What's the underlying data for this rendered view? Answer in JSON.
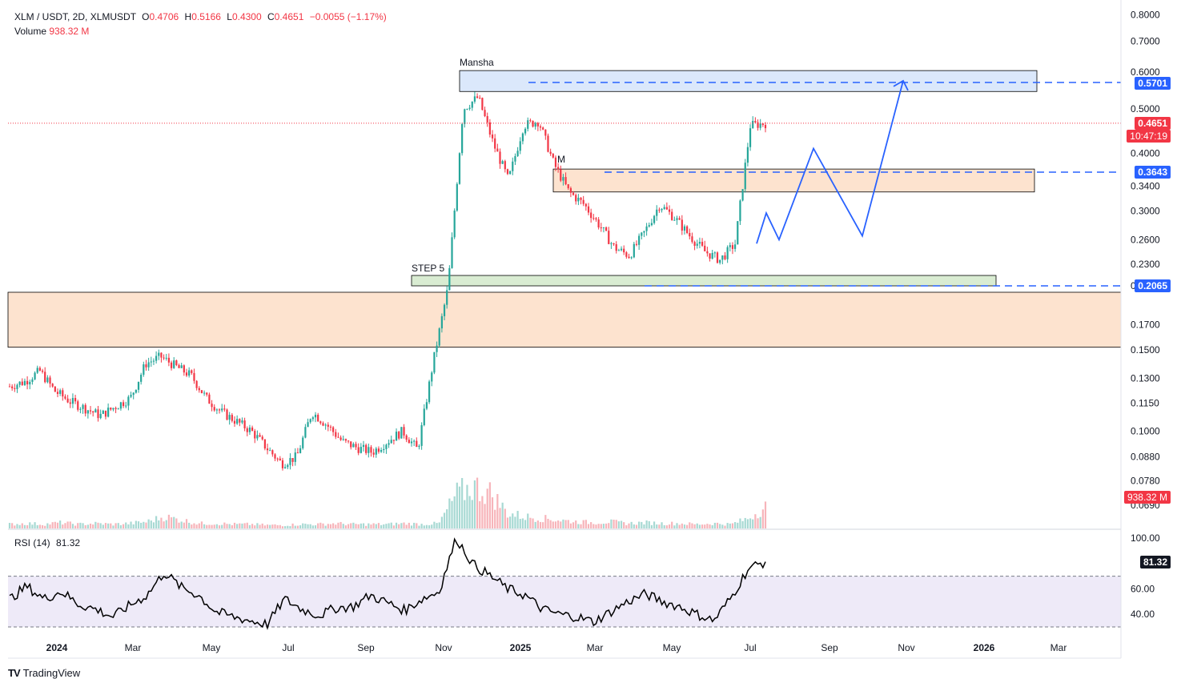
{
  "header": {
    "symbol": "XLM / USDT, 2D, XLMUSDT",
    "o_label": "O",
    "o_value": "0.4706",
    "h_label": "H",
    "h_value": "0.5166",
    "l_label": "L",
    "l_value": "0.4300",
    "c_label": "C",
    "c_value": "0.4651",
    "change": "−0.0055 (−1.17%)",
    "volume_label": "Volume",
    "volume_value": "938.32 M"
  },
  "rsi_header": {
    "label": "RSI (14)",
    "value": "81.32"
  },
  "price_axis": [
    "0.8000",
    "0.7000",
    "0.6000",
    "0.5000",
    "0.4000",
    "0.3400",
    "0.3000",
    "0.2600",
    "0.2300",
    "0.2065",
    "0.1700",
    "0.1500",
    "0.1300",
    "0.1150",
    "0.1000",
    "0.0880",
    "0.0780",
    "0.0690"
  ],
  "rsi_axis": [
    "100.00",
    "60.00",
    "40.00"
  ],
  "time_axis": [
    "2024",
    "Mar",
    "May",
    "Jul",
    "Sep",
    "Nov",
    "2025",
    "Mar",
    "May",
    "Jul",
    "Sep",
    "Nov",
    "2026",
    "Mar"
  ],
  "tags": {
    "resistance": "0.5701",
    "last_price": "0.4651",
    "countdown": "10:47:19",
    "mid": "0.3643",
    "support": "0.2065",
    "volume": "938.32 M",
    "rsi": "81.32"
  },
  "annotations": {
    "top_zone": "Mansha",
    "step": "STEP 5",
    "small": "M"
  },
  "colors": {
    "up": "#26a69a",
    "down": "#f23645",
    "projection": "#2962ff",
    "blue_zone": "#dbe8fb",
    "orange_zone": "#fde3cf",
    "green_zone": "#d9ecd2",
    "rsi_band": "#eeeaf8",
    "rsi_line": "#000000"
  },
  "branding": "TradingView",
  "chart_data": {
    "type": "candlestick",
    "symbol": "XLM / USDT",
    "interval": "2D",
    "scale": "log",
    "ylim": [
      0.066,
      0.82
    ],
    "key_levels": [
      0.5701,
      0.4651,
      0.3643,
      0.2065
    ],
    "zones": [
      {
        "low": 0.545,
        "high": 0.605
      },
      {
        "low": 0.33,
        "high": 0.37
      },
      {
        "low": 0.2065,
        "high": 0.2175
      },
      {
        "low": 0.152,
        "high": 0.2
      }
    ],
    "projection": [
      0.255,
      0.297,
      0.26,
      0.41,
      0.265,
      0.575
    ],
    "price_path": [
      0.125,
      0.128,
      0.135,
      0.122,
      0.116,
      0.112,
      0.108,
      0.113,
      0.118,
      0.14,
      0.145,
      0.138,
      0.132,
      0.118,
      0.11,
      0.105,
      0.1,
      0.092,
      0.085,
      0.088,
      0.11,
      0.103,
      0.095,
      0.092,
      0.09,
      0.095,
      0.1,
      0.091,
      0.14,
      0.205,
      0.5,
      0.53,
      0.42,
      0.35,
      0.46,
      0.47,
      0.38,
      0.33,
      0.31,
      0.28,
      0.25,
      0.24,
      0.27,
      0.31,
      0.29,
      0.265,
      0.245,
      0.235,
      0.255,
      0.46,
      0.4651
    ],
    "rsi_series": [
      52,
      62,
      52,
      58,
      48,
      44,
      38,
      47,
      55,
      73,
      61,
      55,
      42,
      38,
      35,
      32,
      52,
      44,
      39,
      45,
      46,
      55,
      49,
      43,
      52,
      58,
      100,
      79,
      70,
      60,
      55,
      44,
      40,
      38,
      34,
      42,
      50,
      56,
      50,
      46,
      40,
      35,
      53,
      76,
      81.32
    ],
    "volume_series": [
      5,
      6,
      5,
      7,
      5,
      6,
      5,
      6,
      8,
      14,
      10,
      6,
      6,
      5,
      5,
      4,
      4,
      5,
      5,
      6,
      5,
      5,
      5,
      6,
      5,
      6,
      40,
      50,
      42,
      18,
      14,
      12,
      10,
      8,
      7,
      8,
      6,
      7,
      6,
      6,
      5,
      6,
      5,
      12,
      26
    ],
    "rsi_levels": {
      "upper": 70,
      "lower": 30
    }
  }
}
